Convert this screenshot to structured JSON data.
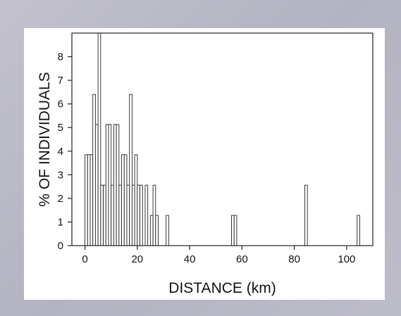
{
  "chart_data": {
    "type": "bar",
    "xlabel": "DISTANCE (km)",
    "ylabel": "% OF INDIVIDUALS",
    "xlim": [
      -5,
      110
    ],
    "ylim": [
      0,
      9
    ],
    "xticks": [
      0,
      20,
      40,
      60,
      80,
      100
    ],
    "yticks": [
      0,
      1,
      2,
      3,
      4,
      5,
      6,
      7,
      8
    ],
    "bin_width_km": 1,
    "bins": [
      {
        "x": 0,
        "value": 3.85
      },
      {
        "x": 1,
        "value": 3.85
      },
      {
        "x": 2,
        "value": 3.85
      },
      {
        "x": 3,
        "value": 6.4
      },
      {
        "x": 4,
        "value": 5.13
      },
      {
        "x": 5,
        "value": 9.0
      },
      {
        "x": 6,
        "value": 2.56
      },
      {
        "x": 7,
        "value": 2.56
      },
      {
        "x": 8,
        "value": 5.13
      },
      {
        "x": 9,
        "value": 5.13
      },
      {
        "x": 10,
        "value": 2.56
      },
      {
        "x": 11,
        "value": 5.13
      },
      {
        "x": 12,
        "value": 5.13
      },
      {
        "x": 13,
        "value": 2.56
      },
      {
        "x": 14,
        "value": 3.85
      },
      {
        "x": 15,
        "value": 3.85
      },
      {
        "x": 16,
        "value": 2.56
      },
      {
        "x": 17,
        "value": 6.4
      },
      {
        "x": 18,
        "value": 2.56
      },
      {
        "x": 19,
        "value": 3.85
      },
      {
        "x": 20,
        "value": 2.56
      },
      {
        "x": 21,
        "value": 2.56
      },
      {
        "x": 23,
        "value": 2.56
      },
      {
        "x": 25,
        "value": 1.28
      },
      {
        "x": 26,
        "value": 2.56
      },
      {
        "x": 27,
        "value": 1.28
      },
      {
        "x": 31,
        "value": 1.28
      },
      {
        "x": 56,
        "value": 1.28
      },
      {
        "x": 57,
        "value": 1.28
      },
      {
        "x": 84,
        "value": 2.56
      },
      {
        "x": 104,
        "value": 1.28
      }
    ],
    "grid": false
  },
  "colors": {
    "frame": "#b9b9c6",
    "panel": "#ffffff",
    "bar_fill": "#ffffff",
    "bar_stroke": "#222222"
  }
}
